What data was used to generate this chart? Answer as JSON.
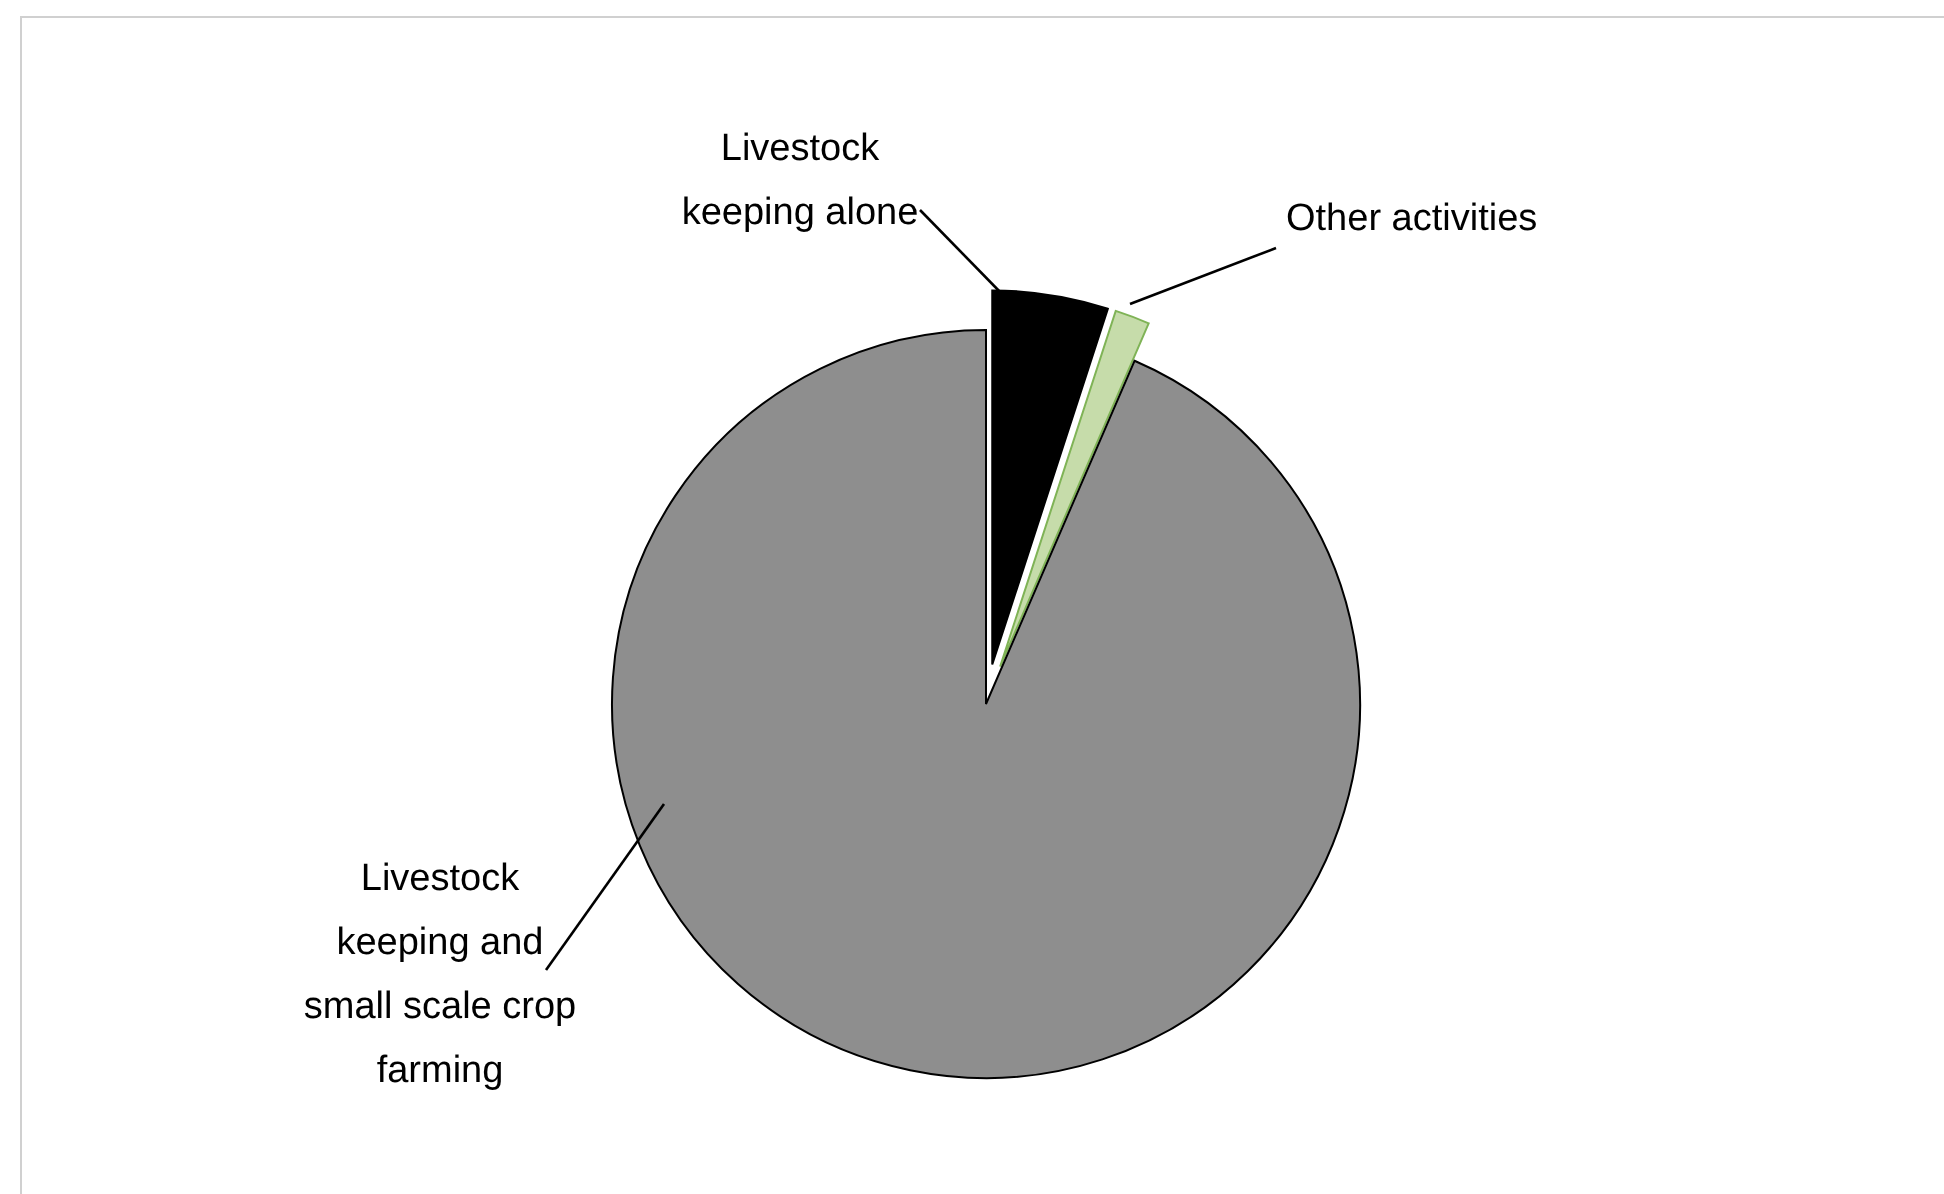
{
  "chart_data": {
    "type": "pie",
    "categories": [
      "Livestock keeping alone",
      "Other activities",
      "Livestock keeping and small scale crop farming"
    ],
    "values": [
      5,
      1.5,
      93.5
    ],
    "colors": [
      "#000000",
      "#c6dcaa",
      "#8e8e8e"
    ]
  }
}
